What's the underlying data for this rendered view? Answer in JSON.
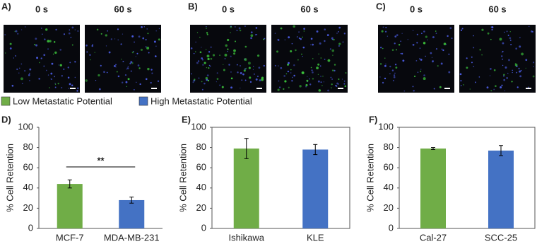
{
  "panels": [
    {
      "label": "A)",
      "times": [
        "0 s",
        "60 s"
      ]
    },
    {
      "label": "B)",
      "times": [
        "0 s",
        "60 s"
      ]
    },
    {
      "label": "C)",
      "times": [
        "0 s",
        "60 s"
      ]
    }
  ],
  "legend": [
    {
      "name": "Low Metastatic Potential",
      "color": "#70ad47"
    },
    {
      "name": "High Metastatic Potential",
      "color": "#4472c4"
    }
  ],
  "chart_data": [
    {
      "type": "bar",
      "label": "D)",
      "ylabel": "% Cell Retention",
      "categories": [
        "MCF-7",
        "MDA-MB-231"
      ],
      "values": [
        44,
        28
      ],
      "errors": [
        4,
        3
      ],
      "colors": [
        "#70ad47",
        "#4472c4"
      ],
      "ylim": [
        0,
        100
      ],
      "yticks": [
        0,
        20,
        40,
        60,
        80,
        100
      ],
      "frame": false,
      "annotation": "**"
    },
    {
      "type": "bar",
      "label": "E)",
      "ylabel": "% Cell Retention",
      "categories": [
        "Ishikawa",
        "KLE"
      ],
      "values": [
        79,
        78
      ],
      "errors": [
        10,
        5
      ],
      "colors": [
        "#70ad47",
        "#4472c4"
      ],
      "ylim": [
        0,
        100
      ],
      "yticks": [
        0,
        20,
        40,
        60,
        80,
        100
      ],
      "frame": true
    },
    {
      "type": "bar",
      "label": "F)",
      "ylabel": "% Cell Retention",
      "categories": [
        "Cal-27",
        "SCC-25"
      ],
      "values": [
        79,
        77
      ],
      "errors": [
        1,
        5
      ],
      "colors": [
        "#70ad47",
        "#4472c4"
      ],
      "ylim": [
        0,
        100
      ],
      "yticks": [
        0,
        20,
        40,
        60,
        80,
        100
      ],
      "frame": true
    }
  ]
}
